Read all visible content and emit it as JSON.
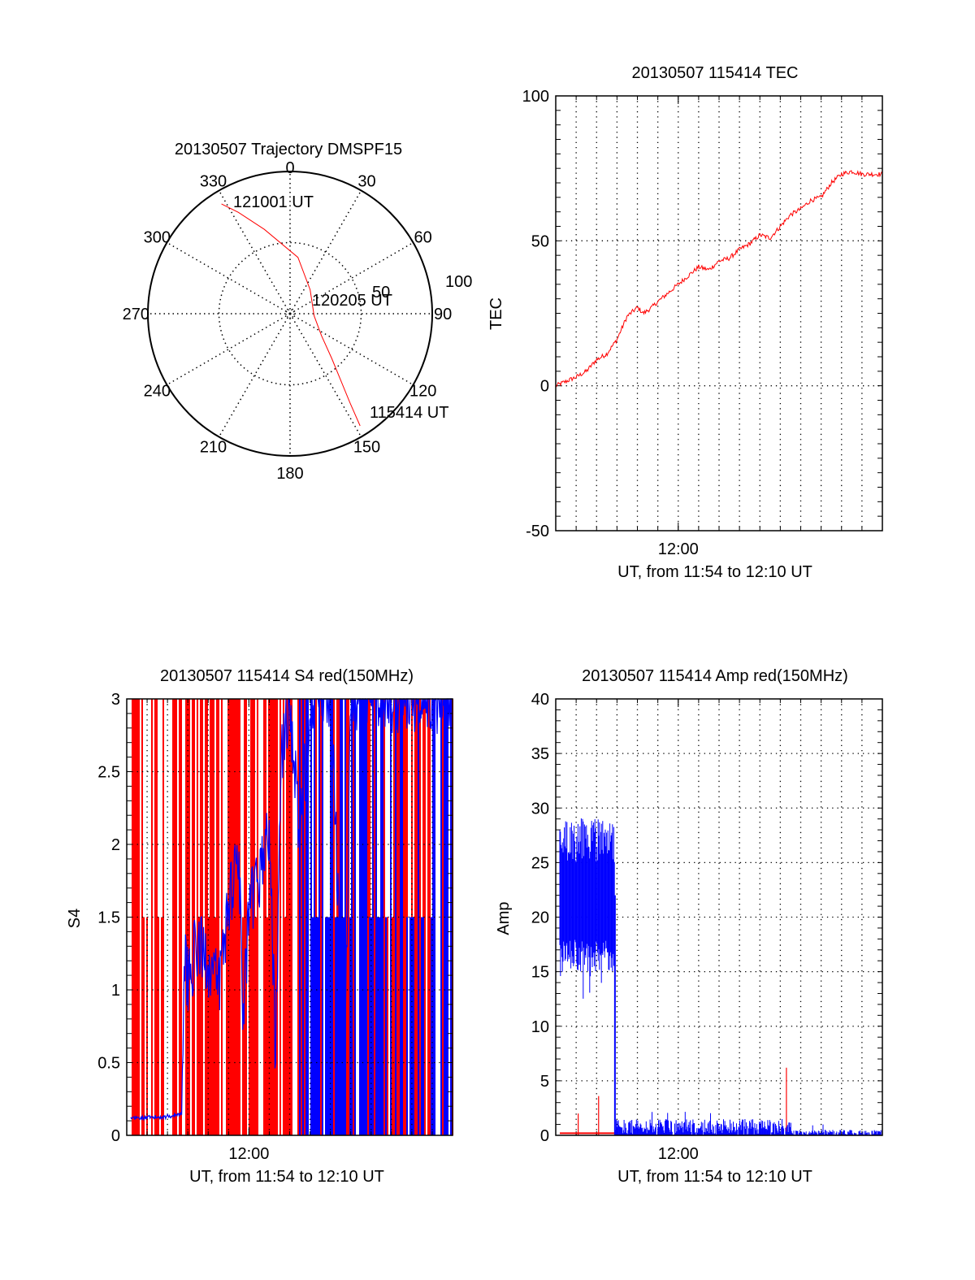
{
  "chart_data": [
    {
      "type": "polar",
      "title": "20130507 Trajectory DMSPF15",
      "angle_ticks": [
        "0",
        "30",
        "60",
        "90",
        "120",
        "150",
        "180",
        "210",
        "240",
        "270",
        "300",
        "330"
      ],
      "radial_ticks": [
        "50",
        "100"
      ],
      "r_range": [
        0,
        100
      ],
      "grid": true,
      "line_color": "#ff0000",
      "trajectory": {
        "points": [
          {
            "az": 148,
            "r": 93
          },
          {
            "az": 146,
            "r": 75
          },
          {
            "az": 143,
            "r": 60
          },
          {
            "az": 137,
            "r": 43
          },
          {
            "az": 125,
            "r": 27
          },
          {
            "az": 95,
            "r": 17
          },
          {
            "az": 40,
            "r": 22
          },
          {
            "az": 8,
            "r": 40
          },
          {
            "az": 343,
            "r": 62
          },
          {
            "az": 333,
            "r": 80
          },
          {
            "az": 328,
            "r": 91
          }
        ],
        "start_label": "115414 UT",
        "mid_label": "120205 UT",
        "end_label": "121001 UT"
      }
    },
    {
      "type": "line",
      "title": "20130507 115414 TEC",
      "xlabel": "UT, from 11:54 to 12:10 UT",
      "ylabel": "TEC",
      "xlim": [
        0,
        16
      ],
      "x_unit": "minutes after 11:54",
      "x_tick_labels": [
        {
          "value": 6,
          "label": "12:00"
        }
      ],
      "ylim": [
        -50,
        100
      ],
      "y_tick_labels": [
        "100",
        "50",
        "0",
        "-50"
      ],
      "grid": true,
      "series": [
        {
          "name": "TEC",
          "color": "#ff0000",
          "x": [
            0,
            0.5,
            1,
            1.5,
            2,
            2.5,
            3,
            3.5,
            4,
            4.3,
            4.7,
            5,
            5.5,
            6,
            6.5,
            7,
            7.5,
            8,
            8.5,
            9,
            9.5,
            10,
            10.5,
            11,
            11.5,
            12,
            12.5,
            13,
            13.5,
            14,
            14.5,
            15,
            15.5,
            16
          ],
          "y": [
            0,
            1.5,
            3,
            5,
            9,
            11,
            16,
            24,
            27,
            25,
            27,
            29,
            32,
            35,
            38,
            41,
            40,
            43,
            44,
            47,
            49,
            52,
            51,
            55,
            59,
            61,
            64,
            65,
            70,
            73,
            74,
            73,
            73,
            73
          ]
        }
      ]
    },
    {
      "type": "bar",
      "title": "20130507 115414 S4 red(150MHz)",
      "xlabel": "UT, from 11:54 to 12:10 UT",
      "ylabel": "S4",
      "xlim": [
        0,
        16
      ],
      "x_unit": "minutes after 11:54",
      "x_tick_labels": [
        {
          "value": 6,
          "label": "12:00"
        }
      ],
      "ylim": [
        0,
        3
      ],
      "y_tick_labels": [
        "3",
        "2.5",
        "2",
        "1.5",
        "1",
        "0.5",
        "0"
      ],
      "grid": true,
      "series": [
        {
          "name": "S4 (red, saturated)",
          "color": "#ff0000",
          "level_low": 1.5,
          "level_high": 3.0
        },
        {
          "name": "S4 (blue)",
          "color": "#0000ff",
          "x": [
            0.2,
            1,
            2,
            2.7,
            2.8,
            3,
            3.5,
            4,
            4.5,
            5,
            5.5,
            5.7,
            6,
            6.5,
            7,
            7.3,
            7.6,
            8,
            8.5,
            9,
            10,
            10.7,
            11,
            12,
            13,
            14,
            15,
            16
          ],
          "y": [
            0.12,
            0.12,
            0.13,
            0.15,
            1.2,
            1.1,
            1.3,
            1.2,
            1.0,
            1.6,
            2.0,
            0.75,
            1.5,
            1.8,
            2.1,
            0.6,
            2.6,
            3.0,
            2.0,
            3.0,
            3.0,
            0.5,
            3.0,
            3.0,
            3.0,
            3.0,
            3.0,
            3.0
          ]
        }
      ]
    },
    {
      "type": "line",
      "title": "20130507 115414 Amp red(150MHz)",
      "xlabel": "UT, from 11:54 to 12:10 UT",
      "ylabel": "Amp",
      "xlim": [
        0,
        16
      ],
      "x_unit": "minutes after 11:54",
      "x_tick_labels": [
        {
          "value": 6,
          "label": "12:00"
        }
      ],
      "ylim": [
        0,
        40
      ],
      "y_tick_labels": [
        "40",
        "35",
        "30",
        "25",
        "20",
        "15",
        "10",
        "5",
        "0"
      ],
      "grid": true,
      "series": [
        {
          "name": "Amp blue",
          "color": "#0000ff",
          "segments": [
            {
              "x_start": 0.2,
              "x_end": 2.9,
              "min": 15,
              "max": 29,
              "peak": 30.5,
              "trough": 12.5
            },
            {
              "x_start": 2.9,
              "x_end": 11.1,
              "min": 0,
              "max": 1.5,
              "peak": 2.2
            },
            {
              "x_start": 11.1,
              "x_end": 11.6,
              "min": 0,
              "max": 1.3,
              "peak": 1.5
            },
            {
              "x_start": 11.6,
              "x_end": 16,
              "min": 0,
              "max": 0.5,
              "peak": 1.2
            }
          ]
        },
        {
          "name": "Amp red",
          "color": "#ff0000",
          "baseline": 0.2,
          "x_start": 0.2,
          "x_end": 2.9,
          "spikes": [
            {
              "x": 1.1,
              "y": 2.0
            },
            {
              "x": 2.1,
              "y": 3.6
            },
            {
              "x": 11.3,
              "y": 6.2
            }
          ]
        }
      ]
    }
  ]
}
